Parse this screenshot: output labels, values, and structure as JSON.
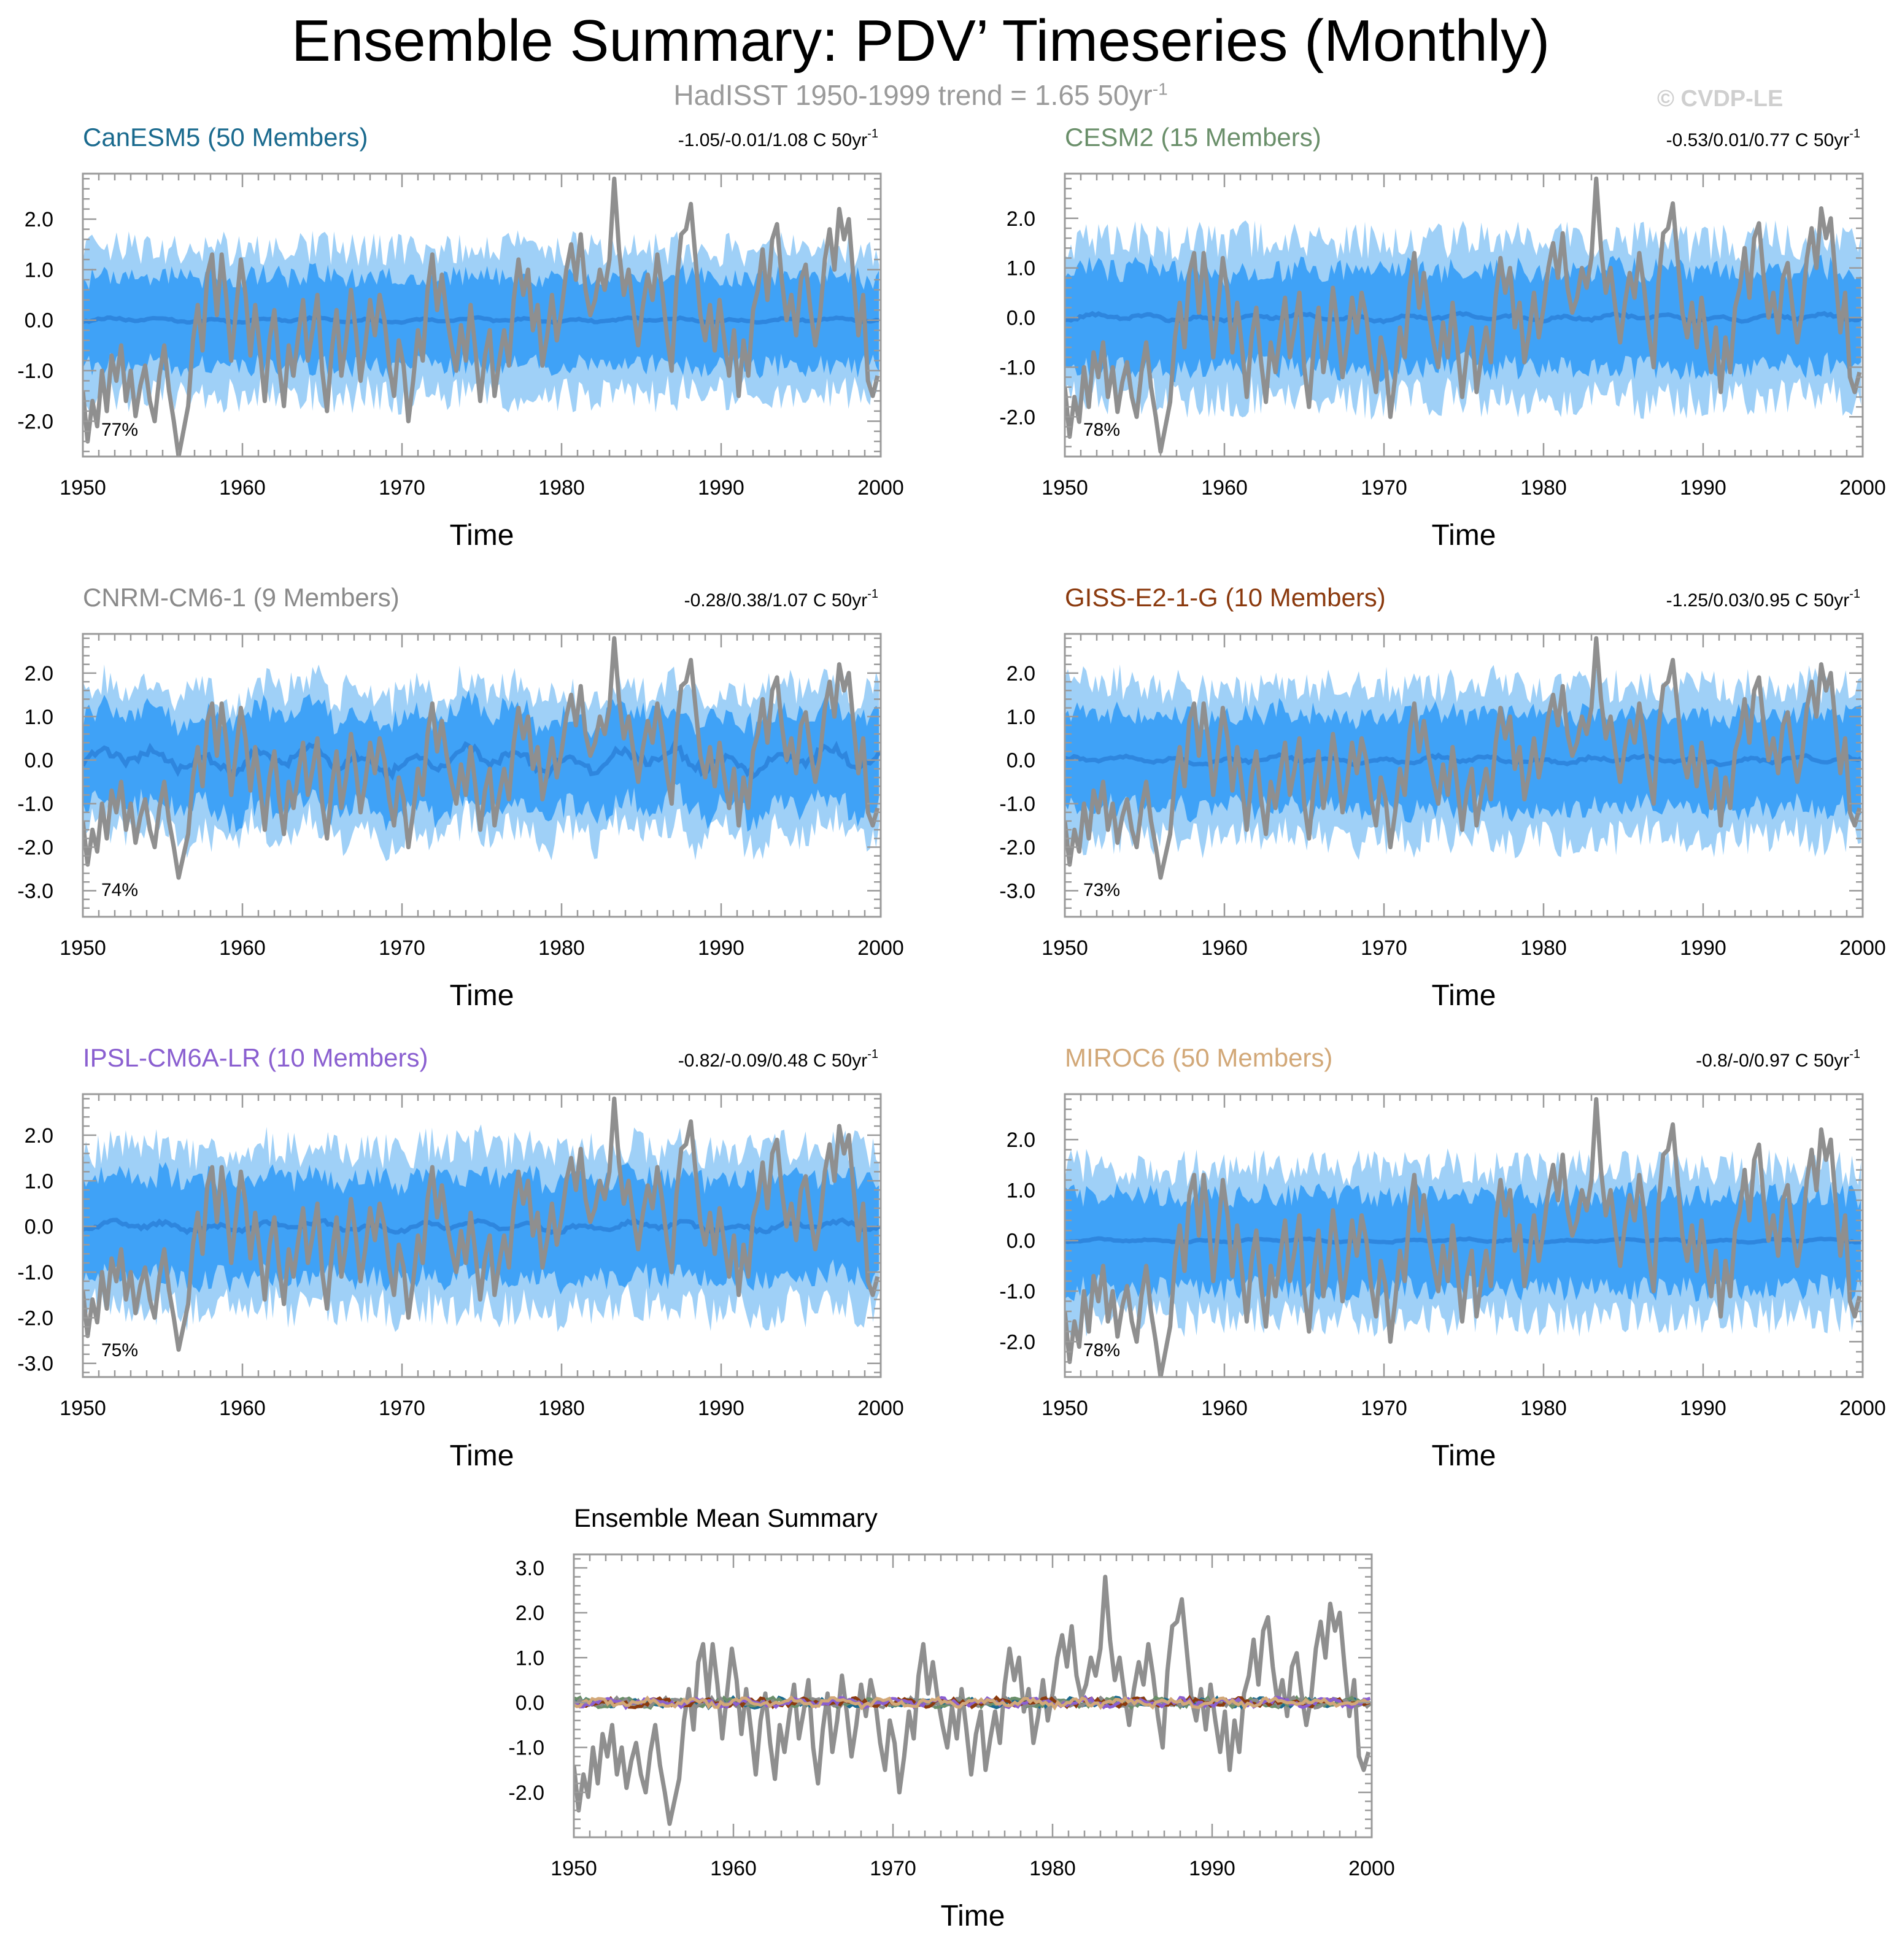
{
  "title": "Ensemble Summary: PDV’ Timeseries (Monthly)",
  "subtitle": "HadISST 1950-1999 trend = 1.65 50yr",
  "subtitle_sup": "-1",
  "watermark": "© CVDP-LE",
  "colors": {
    "obs": "#8f8f8f",
    "band_outer": "#9fd0f7",
    "band_inner": "#3fa2f7",
    "mean": "#2e86de",
    "canesm5": "#1a6a8e",
    "cesm2": "#6a8f6a",
    "cnrm": "#8a8a8a",
    "giss": "#8b3a0e",
    "ipsl": "#8a5fd0",
    "miroc6": "#d2a878"
  },
  "chart_data": [
    {
      "id": "canesm5",
      "type": "line",
      "title": "CanESM5 (50 Members)",
      "title_color": "#1a6a8e",
      "trend": "-1.05/-0.01/1.08 C 50yr",
      "trend_sup": "-1",
      "pct": "77%",
      "xlabel": "Time",
      "xlim": [
        1950,
        2000
      ],
      "ylim": [
        -2.7,
        2.9
      ],
      "xticks": [
        1950,
        1960,
        1970,
        1980,
        1990,
        2000
      ],
      "yticks": [
        2.0,
        1.0,
        0.0,
        -1.0,
        -2.0
      ],
      "ytick_labels": [
        "2.0",
        "1.0",
        "0.0",
        "-1.0",
        "-2.0"
      ],
      "outer_half": 1.4,
      "inner_half": 0.9,
      "mean_amp": 0.04,
      "seed": 11
    },
    {
      "id": "cesm2",
      "type": "line",
      "title": "CESM2 (15 Members)",
      "title_color": "#6a8f6a",
      "trend": "-0.53/0.01/0.77 C 50yr",
      "trend_sup": "-1",
      "pct": "78%",
      "xlabel": "Time",
      "xlim": [
        1950,
        2000
      ],
      "ylim": [
        -2.8,
        2.9
      ],
      "xticks": [
        1950,
        1960,
        1970,
        1980,
        1990,
        2000
      ],
      "yticks": [
        2.0,
        1.0,
        0.0,
        -1.0,
        -2.0
      ],
      "ytick_labels": [
        "2.0",
        "1.0",
        "0.0",
        "-1.0",
        "-2.0"
      ],
      "outer_half": 1.55,
      "inner_half": 1.0,
      "mean_amp": 0.06,
      "seed": 23
    },
    {
      "id": "cnrm",
      "type": "line",
      "title": "CNRM-CM6-1 (9 Members)",
      "title_color": "#8a8a8a",
      "trend": "-0.28/0.38/1.07 C 50yr",
      "trend_sup": "-1",
      "pct": "74%",
      "xlabel": "Time",
      "xlim": [
        1950,
        2000
      ],
      "ylim": [
        -3.6,
        2.9
      ],
      "xticks": [
        1950,
        1960,
        1970,
        1980,
        1990,
        2000
      ],
      "yticks": [
        2.0,
        1.0,
        0.0,
        -1.0,
        -2.0,
        -3.0
      ],
      "ytick_labels": [
        "2.0",
        "1.0",
        "0.0",
        "-1.0",
        "-2.0",
        "-3.0"
      ],
      "outer_half": 1.6,
      "inner_half": 1.1,
      "mean_amp": 0.25,
      "seed": 37
    },
    {
      "id": "giss",
      "type": "line",
      "title": "GISS-E2-1-G (10 Members)",
      "title_color": "#8b3a0e",
      "trend": "-1.25/0.03/0.95 C 50yr",
      "trend_sup": "-1",
      "pct": "73%",
      "xlabel": "Time",
      "xlim": [
        1950,
        2000
      ],
      "ylim": [
        -3.6,
        2.9
      ],
      "xticks": [
        1950,
        1960,
        1970,
        1980,
        1990,
        2000
      ],
      "yticks": [
        2.0,
        1.0,
        0.0,
        -1.0,
        -2.0,
        -3.0
      ],
      "ytick_labels": [
        "2.0",
        "1.0",
        "0.0",
        "-1.0",
        "-2.0",
        "-3.0"
      ],
      "outer_half": 1.7,
      "inner_half": 1.1,
      "mean_amp": 0.08,
      "seed": 51
    },
    {
      "id": "ipsl",
      "type": "line",
      "title": "IPSL-CM6A-LR (10 Members)",
      "title_color": "#8a5fd0",
      "trend": "-0.82/-0.09/0.48 C 50yr",
      "trend_sup": "-1",
      "pct": "75%",
      "xlabel": "Time",
      "xlim": [
        1950,
        2000
      ],
      "ylim": [
        -3.3,
        2.9
      ],
      "xticks": [
        1950,
        1960,
        1970,
        1980,
        1990,
        2000
      ],
      "yticks": [
        2.0,
        1.0,
        0.0,
        -1.0,
        -2.0,
        -3.0
      ],
      "ytick_labels": [
        "2.0",
        "1.0",
        "0.0",
        "-1.0",
        "-2.0",
        "-3.0"
      ],
      "outer_half": 1.7,
      "inner_half": 1.1,
      "mean_amp": 0.1,
      "seed": 67
    },
    {
      "id": "miroc6",
      "type": "line",
      "title": "MIROC6 (50 Members)",
      "title_color": "#d2a878",
      "trend": "-0.8/-0/0.97 C 50yr",
      "trend_sup": "-1",
      "pct": "78%",
      "xlabel": "Time",
      "xlim": [
        1950,
        2000
      ],
      "ylim": [
        -2.7,
        2.9
      ],
      "xticks": [
        1950,
        1960,
        1970,
        1980,
        1990,
        2000
      ],
      "yticks": [
        2.0,
        1.0,
        0.0,
        -1.0,
        -2.0
      ],
      "ytick_labels": [
        "2.0",
        "1.0",
        "0.0",
        "-1.0",
        "-2.0"
      ],
      "outer_half": 1.45,
      "inner_half": 0.95,
      "mean_amp": 0.03,
      "seed": 79
    },
    {
      "id": "summary",
      "type": "line",
      "title": "Ensemble Mean Summary",
      "xlabel": "Time",
      "xlim": [
        1950,
        2000
      ],
      "ylim": [
        -3.0,
        3.3
      ],
      "xticks": [
        1950,
        1960,
        1970,
        1980,
        1990,
        2000
      ],
      "yticks": [
        3.0,
        2.0,
        1.0,
        0.0,
        -1.0,
        -2.0
      ],
      "ytick_labels": [
        "3.0",
        "2.0",
        "1.0",
        "0.0",
        "-1.0",
        "-2.0"
      ],
      "series": [
        {
          "name": "CanESM5",
          "color": "#1a6a8e"
        },
        {
          "name": "CESM2",
          "color": "#6a8f6a"
        },
        {
          "name": "CNRM-CM6-1",
          "color": "#8a8a8a"
        },
        {
          "name": "GISS-E2-1-G",
          "color": "#8b3a0e"
        },
        {
          "name": "IPSL-CM6A-LR",
          "color": "#8a5fd0"
        },
        {
          "name": "MIROC6",
          "color": "#d2a878"
        }
      ]
    }
  ],
  "observed": {
    "name": "HadISST",
    "x": [
      1950.0,
      1950.3,
      1950.6,
      1950.9,
      1951.2,
      1951.5,
      1951.8,
      1952.1,
      1952.4,
      1952.7,
      1953.0,
      1953.3,
      1953.6,
      1953.9,
      1954.2,
      1954.5,
      1954.8,
      1955.1,
      1955.4,
      1955.7,
      1956.0,
      1956.3,
      1956.6,
      1956.9,
      1957.2,
      1957.5,
      1957.8,
      1958.1,
      1958.4,
      1958.7,
      1959.0,
      1959.3,
      1959.6,
      1959.9,
      1960.2,
      1960.5,
      1960.8,
      1961.1,
      1961.4,
      1961.7,
      1962.0,
      1962.3,
      1962.6,
      1962.9,
      1963.2,
      1963.5,
      1963.8,
      1964.1,
      1964.4,
      1964.7,
      1965.0,
      1965.3,
      1965.6,
      1965.9,
      1966.2,
      1966.5,
      1966.8,
      1967.1,
      1967.4,
      1967.7,
      1968.0,
      1968.3,
      1968.6,
      1968.9,
      1969.2,
      1969.5,
      1969.8,
      1970.1,
      1970.4,
      1970.7,
      1971.0,
      1971.3,
      1971.6,
      1971.9,
      1972.2,
      1972.5,
      1972.8,
      1973.1,
      1973.4,
      1973.7,
      1974.0,
      1974.3,
      1974.6,
      1974.9,
      1975.2,
      1975.5,
      1975.8,
      1976.1,
      1976.4,
      1976.7,
      1977.0,
      1977.3,
      1977.6,
      1977.9,
      1978.2,
      1978.5,
      1978.8,
      1979.1,
      1979.4,
      1979.7,
      1980.0,
      1980.3,
      1980.6,
      1980.9,
      1981.2,
      1981.5,
      1981.8,
      1982.1,
      1982.4,
      1982.7,
      1983.0,
      1983.3,
      1983.6,
      1983.9,
      1984.2,
      1984.5,
      1984.8,
      1985.1,
      1985.4,
      1985.7,
      1986.0,
      1986.3,
      1986.6,
      1986.9,
      1987.2,
      1987.5,
      1987.8,
      1988.1,
      1988.4,
      1988.7,
      1989.0,
      1989.3,
      1989.6,
      1989.9,
      1990.2,
      1990.5,
      1990.8,
      1991.1,
      1991.4,
      1991.7,
      1992.0,
      1992.3,
      1992.6,
      1992.9,
      1993.2,
      1993.5,
      1993.8,
      1994.1,
      1994.4,
      1994.7,
      1995.0,
      1995.3,
      1995.6,
      1995.9,
      1996.2,
      1996.5,
      1996.8,
      1997.1,
      1997.4,
      1997.7,
      1998.0,
      1998.3,
      1998.6,
      1998.9,
      1999.2,
      1999.5,
      1999.8
    ],
    "y": [
      -1.4,
      -2.4,
      -1.6,
      -2.1,
      -1.0,
      -1.8,
      -0.7,
      -1.2,
      -0.5,
      -1.6,
      -1.0,
      -1.9,
      -1.3,
      -0.9,
      -1.6,
      -2.0,
      -1.1,
      -0.5,
      -1.4,
      -2.0,
      -2.7,
      -2.2,
      -1.7,
      -0.4,
      0.3,
      -0.6,
      0.9,
      1.3,
      0.1,
      1.3,
      0.4,
      -0.8,
      0.2,
      1.2,
      0.5,
      -0.7,
      0.3,
      -0.6,
      -1.6,
      -0.4,
      0.2,
      -0.9,
      -1.7,
      -0.5,
      -1.1,
      -0.3,
      0.4,
      -0.8,
      -0.2,
      0.5,
      -1.0,
      -1.8,
      -0.6,
      0.2,
      -1.1,
      -0.4,
      0.6,
      -0.2,
      -1.2,
      -0.5,
      0.4,
      -0.3,
      0.5,
      0.0,
      -0.9,
      -1.5,
      -0.4,
      -0.9,
      -2.0,
      -1.2,
      -0.2,
      -0.8,
      0.6,
      1.3,
      0.2,
      0.9,
      0.1,
      -0.5,
      -1.0,
      -0.1,
      -0.8,
      0.3,
      -0.6,
      -1.6,
      -0.7,
      -0.2,
      -1.5,
      -0.8,
      -0.2,
      -0.9,
      0.4,
      1.2,
      0.5,
      1.0,
      -0.2,
      0.3,
      -0.9,
      -0.3,
      0.5,
      -0.4,
      0.2,
      1.0,
      1.5,
      0.8,
      1.7,
      0.6,
      0.1,
      0.4,
      1.0,
      0.6,
      1.2,
      2.8,
      1.4,
      0.5,
      1.0,
      0.2,
      -0.5,
      0.3,
      0.9,
      0.4,
      1.3,
      0.6,
      -0.3,
      -1.0,
      0.7,
      1.7,
      1.8,
      2.3,
      1.2,
      0.1,
      -0.4,
      0.3,
      -0.6,
      0.4,
      -0.4,
      -1.1,
      -0.2,
      -1.5,
      -0.4,
      -1.1,
      0.2,
      0.6,
      1.4,
      0.4,
      1.6,
      1.9,
      0.8,
      0.0,
      0.5,
      -0.3,
      0.8,
      1.1,
      0.2,
      -0.5,
      0.1,
      1.2,
      1.8,
      1.0,
      2.2,
      1.6,
      2.0,
      0.8,
      -0.3,
      0.5,
      -1.2,
      -1.5,
      -1.1
    ]
  },
  "axis_label_font": 34
}
